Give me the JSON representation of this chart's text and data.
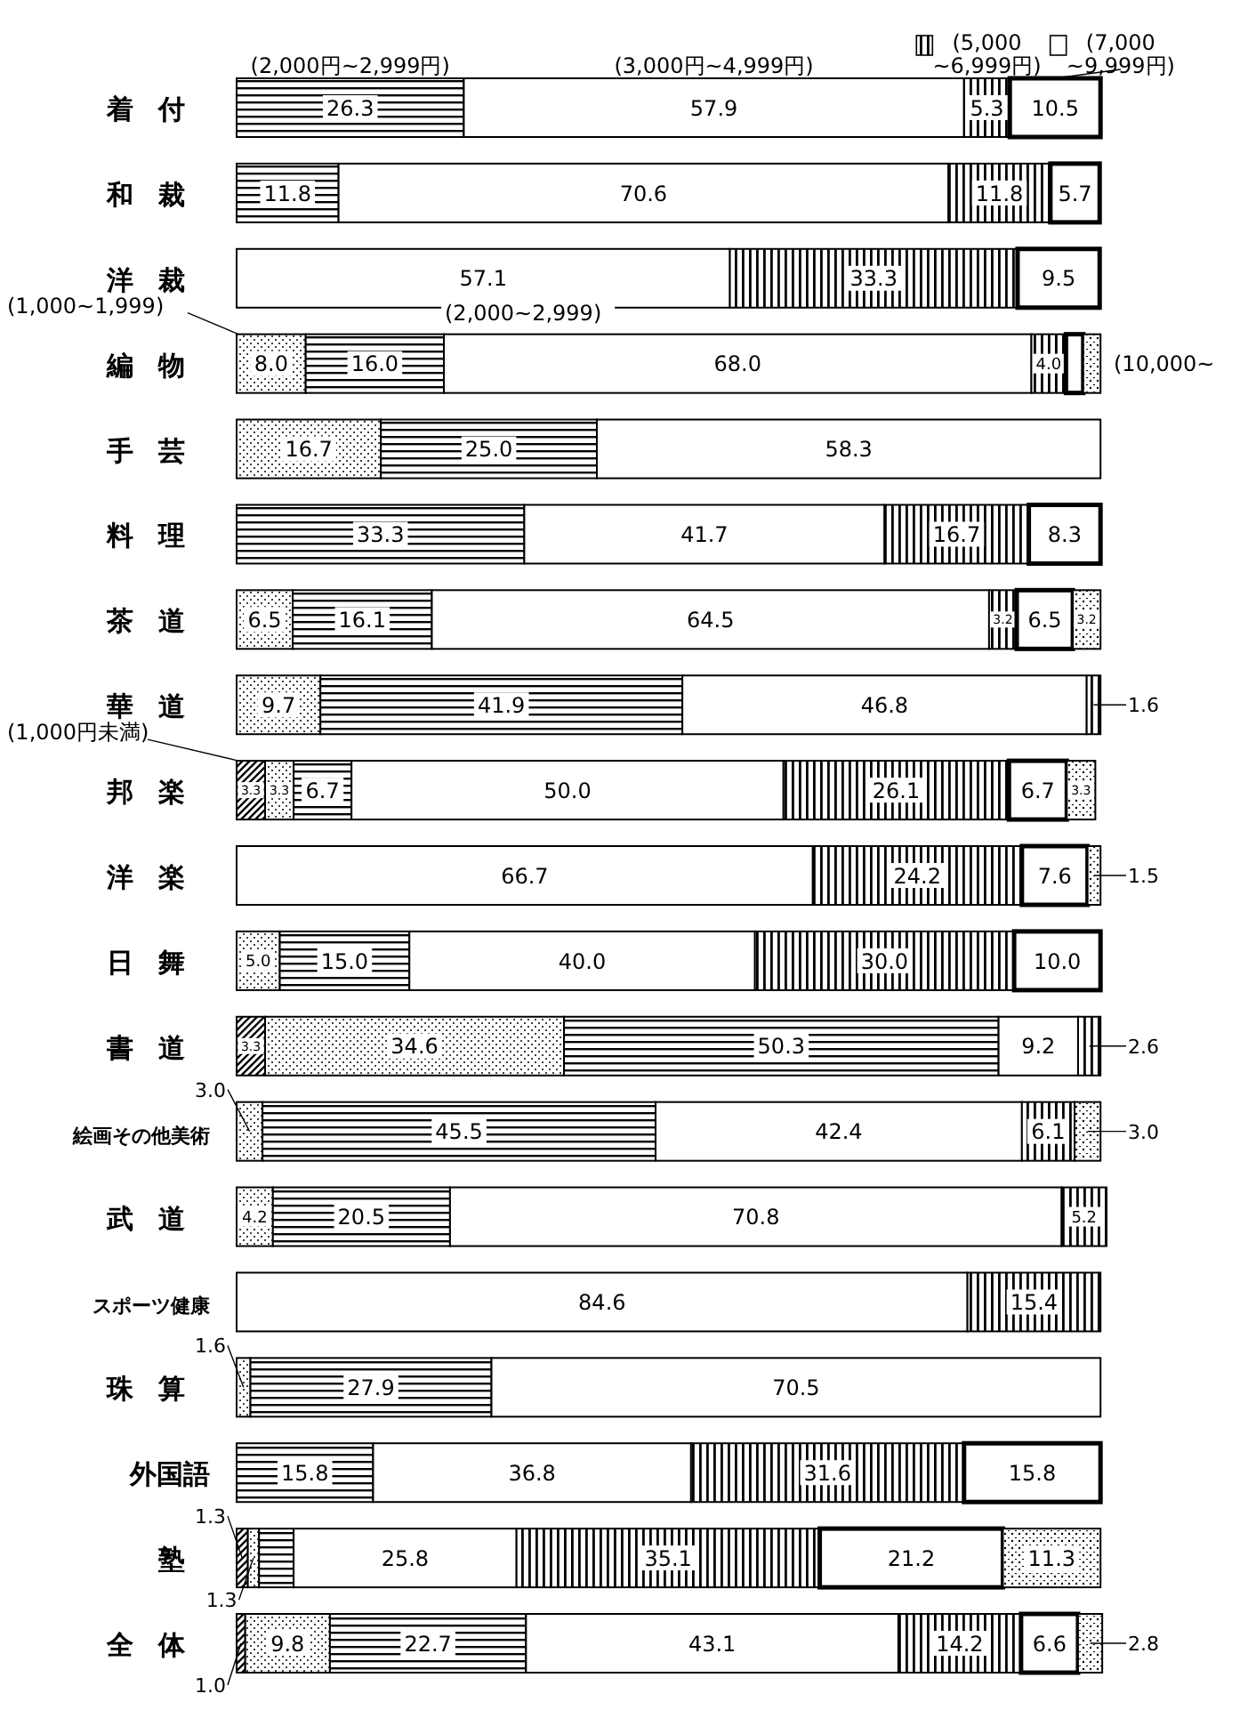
{
  "chart_data": {
    "type": "bar",
    "orientation": "horizontal",
    "stacked": true,
    "legend": "top right",
    "categories": [
      "着付",
      "和裁",
      "洋裁",
      "編物",
      "手芸",
      "料理",
      "茶道",
      "華道",
      "邦楽",
      "洋楽",
      "日舞",
      "書道",
      "絵画その他美術",
      "武道",
      "スポーツ健康",
      "珠算",
      "外国語",
      "塾",
      "全体"
    ],
    "series": [
      {
        "name": "(1,000円未満)",
        "values": [
          0,
          0,
          0,
          0,
          0,
          0,
          0,
          0,
          3.3,
          0,
          0,
          3.3,
          0,
          0,
          0,
          0,
          0,
          1.3,
          1.0
        ],
        "value_labels": [
          null,
          null,
          null,
          null,
          null,
          null,
          null,
          null,
          "3.3",
          null,
          null,
          "3.3",
          null,
          null,
          null,
          null,
          null,
          "1.3",
          "1.0"
        ]
      },
      {
        "name": "(1,000~1,999)",
        "values": [
          0,
          0,
          0,
          8.0,
          16.7,
          0,
          6.5,
          9.7,
          3.3,
          0,
          5.0,
          34.6,
          3.0,
          4.2,
          0,
          1.6,
          0,
          1.3,
          9.8
        ],
        "value_labels": [
          null,
          null,
          null,
          "8.0",
          "16.7",
          null,
          "6.5",
          "9.7",
          "3.3",
          null,
          "5.0",
          "34.6",
          "3.0",
          "4.2",
          null,
          "1.6",
          null,
          "1.3",
          "9.8"
        ]
      },
      {
        "name": "(2,000円~2,999円)",
        "values": [
          26.3,
          11.8,
          0,
          16.0,
          25.0,
          33.3,
          16.1,
          41.9,
          6.7,
          0,
          15.0,
          50.3,
          45.5,
          20.5,
          0,
          27.9,
          15.8,
          4.0,
          22.7
        ],
        "value_labels": [
          "26.3",
          "11.8",
          null,
          "16.0",
          "25.0",
          "33.3",
          "16.1",
          "41.9",
          "6.7",
          null,
          "15.0",
          "50.3",
          "45.5",
          "20.5",
          null,
          "27.9",
          "15.8",
          null,
          "22.7"
        ]
      },
      {
        "name": "(3,000円~4,999円)",
        "values": [
          57.9,
          70.6,
          57.1,
          68.0,
          58.3,
          41.7,
          64.5,
          46.8,
          50.0,
          66.7,
          40.0,
          9.2,
          42.4,
          70.8,
          84.6,
          70.5,
          36.8,
          25.8,
          43.1
        ],
        "value_labels": [
          "57.9",
          "70.6",
          "57.1",
          "68.0",
          "58.3",
          "41.7",
          "64.5",
          "46.8",
          "50.0",
          "66.7",
          "40.0",
          "9.2",
          "42.4",
          "70.8",
          "84.6",
          "70.5",
          "36.8",
          "25.8",
          "43.1"
        ]
      },
      {
        "name": "(5,000 ~6,999円)",
        "values": [
          5.3,
          11.8,
          33.3,
          4.0,
          0,
          16.7,
          3.2,
          1.6,
          26.1,
          24.2,
          30.0,
          2.6,
          6.1,
          5.2,
          15.4,
          0,
          31.6,
          35.1,
          14.2
        ],
        "value_labels": [
          "5.3",
          "11.8",
          "33.3",
          "4.0",
          null,
          "16.7",
          "3.2",
          "1.6",
          "26.1",
          "24.2",
          "30.0",
          "2.6",
          "6.1",
          "5.2",
          "15.4",
          null,
          "31.6",
          "35.1",
          "14.2"
        ]
      },
      {
        "name": "(7,000 ~9,999円)",
        "values": [
          10.5,
          5.7,
          9.5,
          2.0,
          0,
          8.3,
          6.5,
          0,
          6.7,
          7.6,
          10.0,
          0,
          0,
          0,
          0,
          0,
          15.8,
          21.2,
          6.6
        ],
        "value_labels": [
          "10.5",
          "5.7",
          "9.5",
          null,
          null,
          "8.3",
          "6.5",
          null,
          "6.7",
          "7.6",
          "10.0",
          null,
          null,
          null,
          null,
          null,
          "15.8",
          "21.2",
          "6.6"
        ]
      },
      {
        "name": "(10,000~",
        "values": [
          0,
          0,
          0,
          2.0,
          0,
          0,
          3.2,
          0,
          3.3,
          1.5,
          0,
          0,
          3.0,
          0,
          0,
          0,
          0,
          11.3,
          2.8
        ],
        "value_labels": [
          null,
          null,
          null,
          null,
          null,
          null,
          "3.2",
          null,
          "3.3",
          "1.5",
          null,
          null,
          "3.0",
          null,
          null,
          null,
          null,
          "11.3",
          "2.8"
        ]
      }
    ],
    "annotations": [
      "(2,000~2,999)"
    ]
  }
}
